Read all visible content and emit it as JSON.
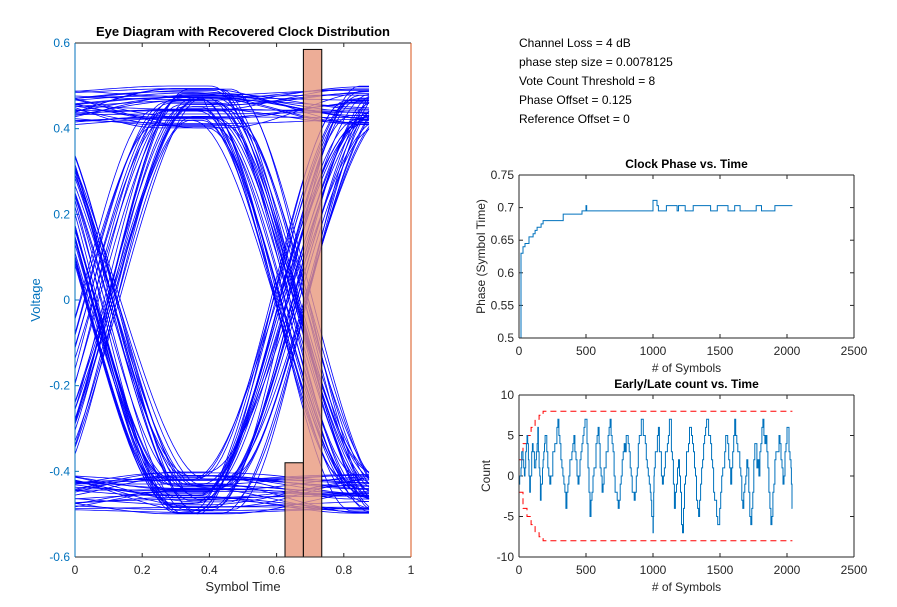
{
  "info": {
    "channel_loss": "Channel Loss = 4 dB",
    "phase_step": "phase step size = 0.0078125",
    "vote_threshold": "Vote Count Threshold = 8",
    "phase_offset": "Phase Offset = 0.125",
    "reference_offset": "Reference Offset = 0"
  },
  "colors": {
    "trace_blue": "#0000ff",
    "series_blue": "#0072bd",
    "hist_fill": "#e8967a",
    "hist_edge": "#000000",
    "right_axis": "#d95319",
    "threshold_red": "#ff0000",
    "axis_gray": "#262626"
  },
  "chart_data": [
    {
      "type": "line",
      "title": "Eye Diagram with Recovered Clock Distribution",
      "xlabel": "Symbol Time",
      "ylabel": "Voltage",
      "xlim": [
        0,
        1
      ],
      "ylim": [
        -0.6,
        0.6
      ],
      "xticks": [
        0,
        0.2,
        0.4,
        0.6,
        0.8,
        1
      ],
      "xtick_labels": [
        "0",
        "0.2",
        "0.4",
        "0.6",
        "0.8",
        "1"
      ],
      "yticks": [
        -0.6,
        -0.4,
        -0.2,
        0,
        0.2,
        0.4,
        0.6
      ],
      "ytick_labels": [
        "-0.6",
        "-0.4",
        "-0.2",
        "0",
        "0.2",
        "0.4",
        "0.6"
      ],
      "eye": {
        "x_span": [
          0,
          0.875
        ],
        "crossing_x": 0.08,
        "crossing_x2": 0.64,
        "high_level": 0.45,
        "low_level": -0.45,
        "level_spread": 0.05,
        "trace_count": 120
      },
      "clock_histogram": {
        "bins": [
          {
            "x0": 0.625,
            "x1": 0.6797,
            "value": -0.38
          },
          {
            "x0": 0.6797,
            "x1": 0.7344,
            "value": 0.585
          }
        ],
        "baseline": -0.6
      }
    },
    {
      "type": "line",
      "title": "Clock Phase vs. Time",
      "xlabel": "# of Symbols",
      "ylabel": "Phase (Symbol Time)",
      "xlim": [
        0,
        2500
      ],
      "ylim": [
        0.5,
        0.75
      ],
      "xticks": [
        0,
        500,
        1000,
        1500,
        2000,
        2500
      ],
      "xtick_labels": [
        "0",
        "500",
        "1000",
        "1500",
        "2000",
        "2500"
      ],
      "yticks": [
        0.5,
        0.55,
        0.6,
        0.65,
        0.7,
        0.75
      ],
      "ytick_labels": [
        "0.5",
        "0.55",
        "0.6",
        "0.65",
        "0.7",
        "0.75"
      ],
      "series": [
        {
          "name": "phase",
          "x": [
            0,
            15,
            30,
            45,
            60,
            75,
            90,
            105,
            120,
            135,
            150,
            165,
            180,
            300,
            310,
            330,
            400,
            470,
            480,
            500,
            505,
            990,
            1000,
            1030,
            1040,
            1090,
            1100,
            1180,
            1190,
            1230,
            1240,
            1290,
            1300,
            1420,
            1430,
            1470,
            1480,
            1550,
            1560,
            1600,
            1610,
            1640,
            1650,
            1760,
            1770,
            1800,
            1810,
            1900,
            1910,
            1960,
            1970,
            2040
          ],
          "values": [
            0.5,
            0.63,
            0.64,
            0.645,
            0.645,
            0.655,
            0.655,
            0.66,
            0.665,
            0.67,
            0.67,
            0.675,
            0.68,
            0.68,
            0.68,
            0.69,
            0.69,
            0.695,
            0.695,
            0.703,
            0.695,
            0.695,
            0.711,
            0.703,
            0.695,
            0.695,
            0.703,
            0.695,
            0.703,
            0.703,
            0.695,
            0.695,
            0.703,
            0.703,
            0.695,
            0.695,
            0.703,
            0.703,
            0.695,
            0.695,
            0.703,
            0.703,
            0.695,
            0.695,
            0.703,
            0.703,
            0.695,
            0.695,
            0.703,
            0.703,
            0.703,
            0.703
          ]
        }
      ]
    },
    {
      "type": "line",
      "title": "Early/Late count vs. Time",
      "xlabel": "# of Symbols",
      "ylabel": "Count",
      "xlim": [
        0,
        2500
      ],
      "ylim": [
        -10,
        10
      ],
      "xticks": [
        0,
        500,
        1000,
        1500,
        2000,
        2500
      ],
      "xtick_labels": [
        "0",
        "500",
        "1000",
        "1500",
        "2000",
        "2500"
      ],
      "yticks": [
        -10,
        -5,
        0,
        5,
        10
      ],
      "ytick_labels": [
        "-10",
        "-5",
        "0",
        "5",
        "10"
      ],
      "series": [
        {
          "name": "count",
          "x": [
            0,
            20,
            40,
            60,
            80,
            100,
            120,
            140,
            160,
            180,
            200,
            230,
            260,
            290,
            320,
            350,
            380,
            410,
            440,
            470,
            500,
            530,
            560,
            590,
            620,
            650,
            680,
            710,
            740,
            770,
            800,
            830,
            860,
            890,
            920,
            950,
            980,
            1000,
            1010,
            1040,
            1070,
            1100,
            1130,
            1160,
            1190,
            1220,
            1250,
            1280,
            1310,
            1340,
            1370,
            1400,
            1430,
            1460,
            1490,
            1520,
            1550,
            1580,
            1610,
            1640,
            1670,
            1700,
            1730,
            1760,
            1790,
            1820,
            1850,
            1880,
            1910,
            1940,
            1970,
            2000,
            2030,
            2040
          ],
          "values": [
            -1,
            3,
            0,
            5,
            -2,
            4,
            1,
            6,
            -3,
            2,
            5,
            -1,
            3,
            7,
            1,
            -4,
            2,
            5,
            -1,
            4,
            7,
            -5,
            1,
            6,
            -2,
            3,
            7,
            0,
            -4,
            2,
            5,
            1,
            -3,
            4,
            7,
            2,
            -2,
            -7,
            1,
            6,
            -1,
            3,
            7,
            -4,
            2,
            -7,
            3,
            6,
            1,
            -5,
            2,
            7,
            4,
            -3,
            -6,
            1,
            5,
            -1,
            7,
            3,
            -4,
            2,
            -6,
            4,
            0,
            7,
            3,
            -6,
            2,
            5,
            -1,
            6,
            1,
            -4
          ]
        },
        {
          "name": "threshold_upper",
          "x": [
            0,
            30,
            60,
            90,
            120,
            150,
            180,
            2040
          ],
          "values": [
            2,
            4,
            5,
            6,
            7,
            7.5,
            8,
            8
          ]
        },
        {
          "name": "threshold_lower",
          "x": [
            0,
            30,
            60,
            90,
            120,
            150,
            180,
            2040
          ],
          "values": [
            -2,
            -4,
            -5,
            -6,
            -7,
            -7.5,
            -8,
            -8
          ]
        }
      ]
    }
  ]
}
